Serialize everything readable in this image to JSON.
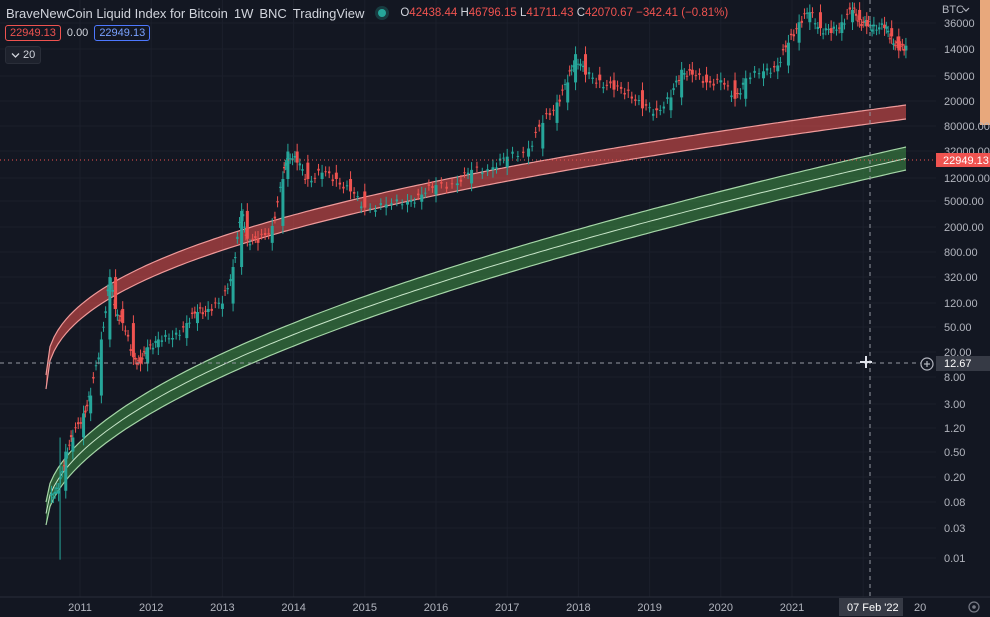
{
  "header": {
    "title": "BraveNewCoin Liquid Index for Bitcoin",
    "interval": "1W",
    "exchange": "BNC",
    "source": "TradingView",
    "ohlc": {
      "o_label": "O",
      "o": "42438.44",
      "h_label": "H",
      "h": "46796.15",
      "l_label": "L",
      "l": "41711.43",
      "c_label": "C",
      "c": "42070.67",
      "change": "−342.41 (−0.81%)"
    }
  },
  "indicator_values": {
    "upper": "22949.13",
    "mid": "0.00",
    "lower": "22949.13"
  },
  "collapse_count": "20",
  "price_scale": {
    "currency": "BTC",
    "ticks": [
      "36000",
      "14000",
      "50000",
      "20000",
      "80000.00",
      "32000.00",
      "12000.00",
      "5000.00",
      "2000.00",
      "800.00",
      "320.00",
      "120.00",
      "50.00",
      "20.00",
      "8.00",
      "3.00",
      "1.20",
      "0.50",
      "0.20",
      "0.08",
      "0.03",
      "0.01"
    ],
    "current_price_label": "22949.13",
    "crosshair_price_label": "12.67"
  },
  "time_scale": {
    "labels": [
      "2011",
      "2012",
      "2013",
      "2014",
      "2015",
      "2016",
      "2017",
      "2018",
      "2019",
      "2020",
      "2021",
      "20"
    ],
    "crosshair_date": "07 Feb '22"
  },
  "colors": {
    "background": "#131722",
    "upper_band": "#ef5350",
    "lower_band": "#4caf50",
    "up_candle": "#26a69a",
    "down_candle": "#ef5350"
  },
  "chart_data": {
    "type": "candlestick",
    "y_scale": "log",
    "series": [
      {
        "values": [
          {
            "x": 2010.6,
            "y": 0.06
          },
          {
            "x": 2010.7,
            "y": 0.065
          },
          {
            "x": 2010.8,
            "y": 0.2
          },
          {
            "x": 2010.9,
            "y": 0.3
          },
          {
            "x": 2011.05,
            "y": 0.6
          },
          {
            "x": 2011.15,
            "y": 1.0
          },
          {
            "x": 2011.3,
            "y": 5
          },
          {
            "x": 2011.42,
            "y": 30
          },
          {
            "x": 2011.5,
            "y": 12
          },
          {
            "x": 2011.6,
            "y": 8
          },
          {
            "x": 2011.75,
            "y": 3
          },
          {
            "x": 2011.85,
            "y": 2.5
          },
          {
            "x": 2011.95,
            "y": 4
          },
          {
            "x": 2012.1,
            "y": 5
          },
          {
            "x": 2012.3,
            "y": 5.2
          },
          {
            "x": 2012.5,
            "y": 8
          },
          {
            "x": 2012.65,
            "y": 11
          },
          {
            "x": 2012.8,
            "y": 12
          },
          {
            "x": 2013.0,
            "y": 14
          },
          {
            "x": 2013.15,
            "y": 40
          },
          {
            "x": 2013.27,
            "y": 200
          },
          {
            "x": 2013.35,
            "y": 90
          },
          {
            "x": 2013.5,
            "y": 80
          },
          {
            "x": 2013.7,
            "y": 130
          },
          {
            "x": 2013.85,
            "y": 500
          },
          {
            "x": 2013.92,
            "y": 1100
          },
          {
            "x": 2014.05,
            "y": 800
          },
          {
            "x": 2014.2,
            "y": 500
          },
          {
            "x": 2014.4,
            "y": 600
          },
          {
            "x": 2014.6,
            "y": 500
          },
          {
            "x": 2014.8,
            "y": 350
          },
          {
            "x": 2015.0,
            "y": 220
          },
          {
            "x": 2015.3,
            "y": 240
          },
          {
            "x": 2015.6,
            "y": 260
          },
          {
            "x": 2015.8,
            "y": 320
          },
          {
            "x": 2016.0,
            "y": 420
          },
          {
            "x": 2016.3,
            "y": 440
          },
          {
            "x": 2016.5,
            "y": 650
          },
          {
            "x": 2016.8,
            "y": 700
          },
          {
            "x": 2017.0,
            "y": 950
          },
          {
            "x": 2017.3,
            "y": 1200
          },
          {
            "x": 2017.5,
            "y": 2500
          },
          {
            "x": 2017.7,
            "y": 4500
          },
          {
            "x": 2017.85,
            "y": 8000
          },
          {
            "x": 2017.96,
            "y": 18000
          },
          {
            "x": 2018.1,
            "y": 10000
          },
          {
            "x": 2018.3,
            "y": 8500
          },
          {
            "x": 2018.5,
            "y": 6500
          },
          {
            "x": 2018.7,
            "y": 6400
          },
          {
            "x": 2018.9,
            "y": 3800
          },
          {
            "x": 2019.1,
            "y": 3600
          },
          {
            "x": 2019.3,
            "y": 5200
          },
          {
            "x": 2019.45,
            "y": 11500
          },
          {
            "x": 2019.6,
            "y": 10000
          },
          {
            "x": 2019.8,
            "y": 8000
          },
          {
            "x": 2020.0,
            "y": 8500
          },
          {
            "x": 2020.2,
            "y": 5000
          },
          {
            "x": 2020.35,
            "y": 9000
          },
          {
            "x": 2020.6,
            "y": 11000
          },
          {
            "x": 2020.8,
            "y": 13000
          },
          {
            "x": 2020.95,
            "y": 25000
          },
          {
            "x": 2021.1,
            "y": 45000
          },
          {
            "x": 2021.25,
            "y": 60000
          },
          {
            "x": 2021.4,
            "y": 38000
          },
          {
            "x": 2021.55,
            "y": 33000
          },
          {
            "x": 2021.7,
            "y": 45000
          },
          {
            "x": 2021.85,
            "y": 64000
          },
          {
            "x": 2021.95,
            "y": 48000
          },
          {
            "x": 2022.05,
            "y": 40000
          },
          {
            "x": 2022.15,
            "y": 42000
          },
          {
            "x": 2022.3,
            "y": 38000
          },
          {
            "x": 2022.4,
            "y": 30000
          },
          {
            "x": 2022.5,
            "y": 20000
          },
          {
            "x": 2022.6,
            "y": 22949
          }
        ]
      }
    ]
  }
}
